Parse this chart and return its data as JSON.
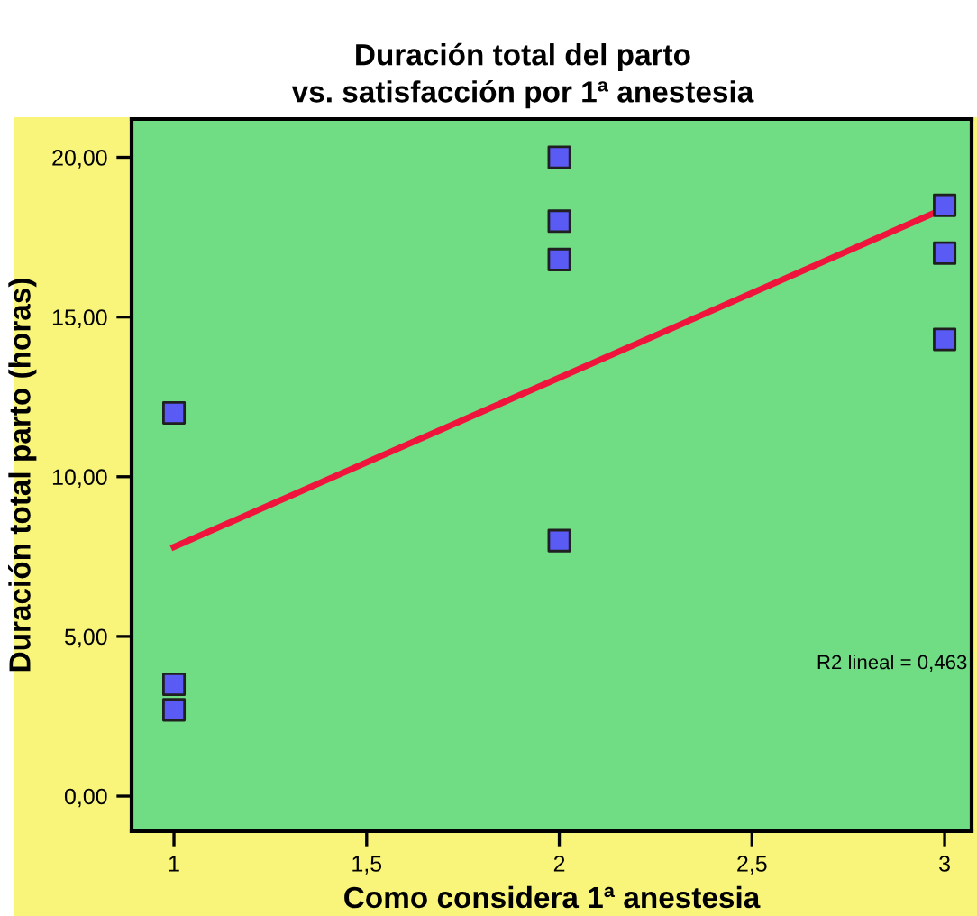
{
  "chart_data": {
    "type": "scatter",
    "title": "Duración total del parto\nvs. satisfacción por 1ª anestesia",
    "xlabel": "Como considera 1ª anestesia",
    "ylabel": "Duración total parto (horas)",
    "series": [
      {
        "color": "#5a5af5",
        "marker": "square",
        "x": [
          1,
          1,
          1,
          2,
          2,
          2,
          2,
          3,
          3,
          3
        ],
        "values": [
          12.0,
          3.5,
          2.7,
          20.0,
          18.0,
          16.8,
          8.0,
          18.5,
          17.0,
          14.3
        ]
      },
      {
        "type": "line",
        "color": "#f0143c",
        "marker": "none",
        "x": [
          1,
          3
        ],
        "values": [
          7.8,
          18.4
        ]
      }
    ],
    "xlim": [
      0.89,
      3.07
    ],
    "ylim": [
      -1.1,
      21.2
    ],
    "xticks": [
      {
        "value": 1,
        "label": "1"
      },
      {
        "value": 1.5,
        "label": "1,5"
      },
      {
        "value": 2,
        "label": "2"
      },
      {
        "value": 2.5,
        "label": "2,5"
      },
      {
        "value": 3,
        "label": "3"
      }
    ],
    "yticks": [
      {
        "value": 0,
        "label": "0,00"
      },
      {
        "value": 5,
        "label": "5,00"
      },
      {
        "value": 10,
        "label": "10,00"
      },
      {
        "value": 15,
        "label": "15,00"
      },
      {
        "value": 20,
        "label": "20,00"
      }
    ],
    "annotations": [
      "R2 lineal = 0,463"
    ],
    "grid": false,
    "legend": false
  }
}
